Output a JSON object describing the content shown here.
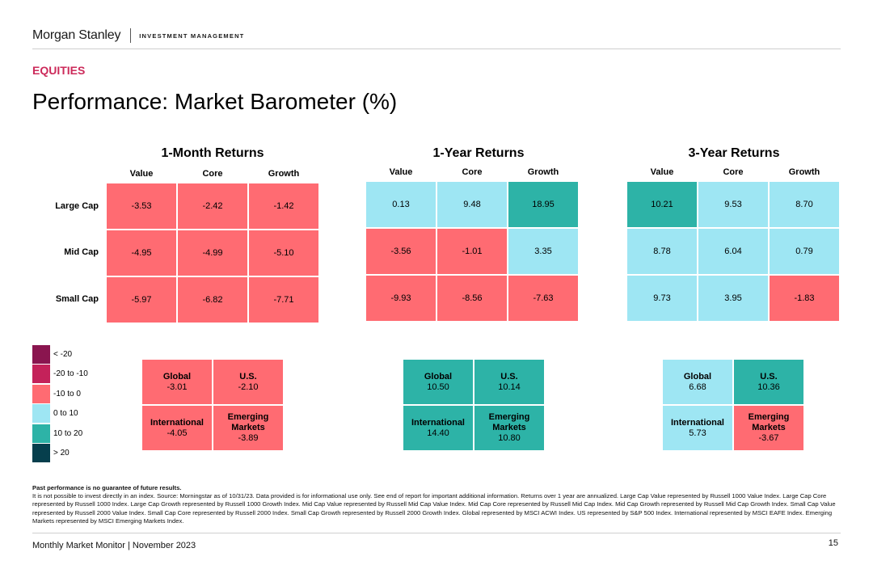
{
  "header": {
    "brand": "Morgan Stanley",
    "division": "INVESTMENT MANAGEMENT",
    "section": "EQUITIES",
    "title": "Performance: Market Barometer (%)"
  },
  "columns": [
    "Value",
    "Core",
    "Growth"
  ],
  "rows": [
    "Large Cap",
    "Mid Cap",
    "Small Cap"
  ],
  "panels": [
    {
      "title": "1-Month Returns",
      "grid": [
        [
          "-3.53",
          "-2.42",
          "-1.42"
        ],
        [
          "-4.95",
          "-4.99",
          "-5.10"
        ],
        [
          "-5.97",
          "-6.82",
          "-7.71"
        ]
      ],
      "summary": {
        "global": {
          "label": "Global",
          "value": "-3.01"
        },
        "us": {
          "label": "U.S.",
          "value": "-2.10"
        },
        "international": {
          "label": "International",
          "value": "-4.05"
        },
        "emerging": {
          "label_1": "Emerging",
          "label_2": "Markets",
          "value": "-3.89"
        }
      }
    },
    {
      "title": "1-Year Returns",
      "grid": [
        [
          "0.13",
          "9.48",
          "18.95"
        ],
        [
          "-3.56",
          "-1.01",
          "3.35"
        ],
        [
          "-9.93",
          "-8.56",
          "-7.63"
        ]
      ],
      "summary": {
        "global": {
          "label": "Global",
          "value": "10.50"
        },
        "us": {
          "label": "U.S.",
          "value": "10.14"
        },
        "international": {
          "label": "International",
          "value": "14.40"
        },
        "emerging": {
          "label_1": "Emerging",
          "label_2": "Markets",
          "value": "10.80"
        }
      }
    },
    {
      "title": "3-Year Returns",
      "grid": [
        [
          "10.21",
          "9.53",
          "8.70"
        ],
        [
          "8.78",
          "6.04",
          "0.79"
        ],
        [
          "9.73",
          "3.95",
          "-1.83"
        ]
      ],
      "summary": {
        "global": {
          "label": "Global",
          "value": "6.68"
        },
        "us": {
          "label": "U.S.",
          "value": "10.36"
        },
        "international": {
          "label": "International",
          "value": "5.73"
        },
        "emerging": {
          "label_1": "Emerging",
          "label_2": "Markets",
          "value": "-3.67"
        }
      }
    }
  ],
  "legend": [
    {
      "label": "< -20",
      "color": "#8a154f"
    },
    {
      "label": "-20 to -10",
      "color": "#c4225a"
    },
    {
      "label": "-10 to 0",
      "color": "#ff6b72"
    },
    {
      "label": "0 to 10",
      "color": "#9ee6f3"
    },
    {
      "label": "10 to 20",
      "color": "#2db3a7"
    },
    {
      "label": "> 20",
      "color": "#063f4d"
    }
  ],
  "disclaimer": {
    "heading": "Past performance is no guarantee of future results.",
    "body": "It is not possible to invest directly in an index. Source: Morningstar as of 10/31/23. Data provided is for informational use only. See end of report for important additional information. Returns over 1 year are annualized. Large Cap Value represented by Russell 1000 Value Index. Large Cap Core represented by Russell 1000 Index. Large Cap Growth represented by Russell 1000 Growth Index. Mid Cap Value represented by Russell Mid Cap Value Index. Mid Cap Core represented by Russell Mid Cap Index. Mid Cap Growth represented by Russell Mid Cap Growth Index. Small Cap Value represented by Russell 2000 Value Index. Small Cap Core represented by Russell 2000 Index. Small Cap Growth represented by Russell 2000 Growth Index. Global represented by MSCI ACWI Index. US represented by S&P 500 Index. International represented by MSCI EAFE Index. Emerging Markets represented by MSCI Emerging Markets Index."
  },
  "footer": {
    "text": "Monthly Market Monitor | November 2023",
    "page": "15"
  }
}
